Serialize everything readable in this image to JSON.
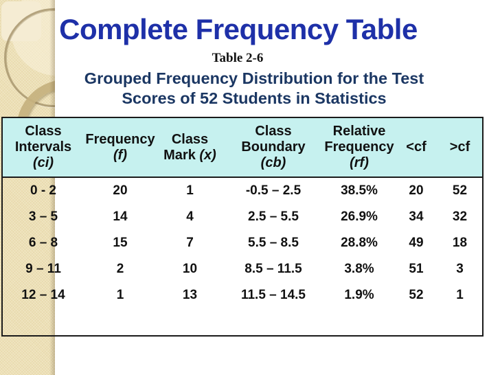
{
  "slide": {
    "title": "Complete Frequency Table",
    "table_caption": "Table 2-6",
    "subtitle_line1": "Grouped Frequency Distribution for the Test",
    "subtitle_line2": "Scores of 52 Students in Statistics"
  },
  "colors": {
    "title_blue": "#1E30A8",
    "subtitle_navy": "#1B3763",
    "header_bg": "#C6F1EF",
    "table_border": "#1A1A1A",
    "sidebar_beige": "#EDE0B6",
    "body_text": "#111111"
  },
  "table": {
    "header": {
      "ci": {
        "line1": "Class",
        "line2": "Intervals",
        "line3": "(ci)"
      },
      "f": {
        "line1": "Frequency",
        "line2": "(f)"
      },
      "x": {
        "line1": "Class",
        "line2_plain": "Mark ",
        "line2_italic": "(x)"
      },
      "cb": {
        "line1": "Class",
        "line2": "Boundary",
        "line3": "(cb)"
      },
      "rf": {
        "line1": "Relative",
        "line2": "Frequency",
        "line3": "(rf)"
      },
      "lcf": {
        "label": "<cf"
      },
      "gcf": {
        "label": ">cf"
      }
    },
    "rows": [
      {
        "ci": "0 - 2",
        "f": "20",
        "x": "1",
        "cb": "-0.5 – 2.5",
        "rf": "38.5%",
        "lcf": "20",
        "gcf": "52"
      },
      {
        "ci": "3 – 5",
        "f": "14",
        "x": "4",
        "cb": "2.5 – 5.5",
        "rf": "26.9%",
        "lcf": "34",
        "gcf": "32"
      },
      {
        "ci": "6 – 8",
        "f": "15",
        "x": "7",
        "cb": "5.5 – 8.5",
        "rf": "28.8%",
        "lcf": "49",
        "gcf": "18"
      },
      {
        "ci": "9 – 11",
        "f": "2",
        "x": "10",
        "cb": "8.5 – 11.5",
        "rf": "3.8%",
        "lcf": "51",
        "gcf": "3"
      },
      {
        "ci": "12 – 14",
        "f": "1",
        "x": "13",
        "cb": "11.5 – 14.5",
        "rf": "1.9%",
        "lcf": "52",
        "gcf": "1"
      }
    ]
  },
  "chart_data": {
    "type": "table",
    "title": "Table 2-6: Grouped Frequency Distribution for the Test Scores of 52 Students in Statistics",
    "columns": [
      "Class Intervals (ci)",
      "Frequency (f)",
      "Class Mark (x)",
      "Class Boundary (cb)",
      "Relative Frequency (rf)",
      "<cf",
      ">cf"
    ],
    "rows": [
      [
        "0 - 2",
        20,
        1,
        "-0.5 – 2.5",
        "38.5%",
        20,
        52
      ],
      [
        "3 – 5",
        14,
        4,
        "2.5 – 5.5",
        "26.9%",
        34,
        32
      ],
      [
        "6 – 8",
        15,
        7,
        "5.5 – 8.5",
        "28.8%",
        49,
        18
      ],
      [
        "9 – 11",
        2,
        10,
        "8.5 – 11.5",
        "3.8%",
        51,
        3
      ],
      [
        "12 – 14",
        1,
        13,
        "11.5 – 14.5",
        "1.9%",
        52,
        1
      ]
    ]
  }
}
